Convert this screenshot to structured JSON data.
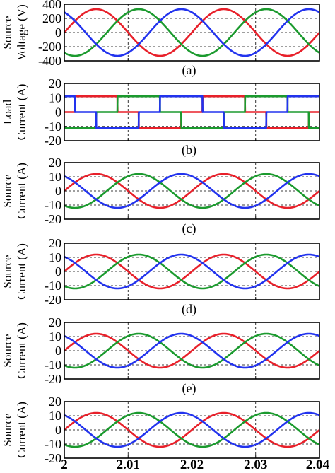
{
  "chart_data": [
    {
      "type": "line",
      "panel_label": "(a)",
      "ylabel": [
        "Source",
        "Voltage (V)"
      ],
      "ylim": [
        -400,
        400
      ],
      "yticks": [
        400,
        200,
        0,
        -200,
        -400
      ],
      "xlim": [
        2.0,
        2.04
      ],
      "grid": "dashed",
      "frequency_hz": 50,
      "series": [
        {
          "color": "#e8202a",
          "waveform": "sine",
          "amplitude": 330,
          "phase_deg": 0
        },
        {
          "color": "#1b9a2e",
          "waveform": "sine",
          "amplitude": 330,
          "phase_deg": -120
        },
        {
          "color": "#2233ee",
          "waveform": "sine",
          "amplitude": 330,
          "phase_deg": 120
        }
      ]
    },
    {
      "type": "line",
      "panel_label": "(b)",
      "ylabel": [
        "Load",
        "Current (A)"
      ],
      "ylim": [
        -20,
        20
      ],
      "yticks": [
        20,
        10,
        0,
        -10,
        -20
      ],
      "xlim": [
        2.0,
        2.04
      ],
      "grid": "dashed",
      "frequency_hz": 50,
      "series": [
        {
          "color": "#e8202a",
          "waveform": "six-step",
          "amplitude": 11,
          "phase_deg": 0
        },
        {
          "color": "#1b9a2e",
          "waveform": "six-step",
          "amplitude": 11,
          "phase_deg": -120
        },
        {
          "color": "#2233ee",
          "waveform": "six-step",
          "amplitude": 11,
          "phase_deg": 120
        }
      ]
    },
    {
      "type": "line",
      "panel_label": "(c)",
      "ylabel": [
        "Source",
        "Current (A)"
      ],
      "ylim": [
        -20,
        20
      ],
      "yticks": [
        20,
        10,
        0,
        -10,
        -20
      ],
      "xlim": [
        2.0,
        2.04
      ],
      "grid": "dashed",
      "frequency_hz": 50,
      "series": [
        {
          "color": "#e8202a",
          "waveform": "sine",
          "amplitude": 12,
          "phase_deg": 0
        },
        {
          "color": "#1b9a2e",
          "waveform": "sine",
          "amplitude": 12,
          "phase_deg": -120
        },
        {
          "color": "#2233ee",
          "waveform": "sine",
          "amplitude": 12,
          "phase_deg": 120
        }
      ]
    },
    {
      "type": "line",
      "panel_label": "(d)",
      "ylabel": [
        "Source",
        "Current (A)"
      ],
      "ylim": [
        -20,
        20
      ],
      "yticks": [
        20,
        10,
        0,
        -10,
        -20
      ],
      "xlim": [
        2.0,
        2.04
      ],
      "grid": "dashed",
      "frequency_hz": 50,
      "series": [
        {
          "color": "#e8202a",
          "waveform": "sine",
          "amplitude": 12,
          "phase_deg": 0
        },
        {
          "color": "#1b9a2e",
          "waveform": "sine",
          "amplitude": 12,
          "phase_deg": -120
        },
        {
          "color": "#2233ee",
          "waveform": "sine",
          "amplitude": 12,
          "phase_deg": 120
        }
      ]
    },
    {
      "type": "line",
      "panel_label": "(e)",
      "ylabel": [
        "Source",
        "Current (A)"
      ],
      "ylim": [
        -20,
        20
      ],
      "yticks": [
        20,
        10,
        0,
        -10,
        -20
      ],
      "xlim": [
        2.0,
        2.04
      ],
      "grid": "dashed",
      "frequency_hz": 50,
      "series": [
        {
          "color": "#e8202a",
          "waveform": "sine",
          "amplitude": 12,
          "phase_deg": 0
        },
        {
          "color": "#1b9a2e",
          "waveform": "sine",
          "amplitude": 12,
          "phase_deg": -120
        },
        {
          "color": "#2233ee",
          "waveform": "sine",
          "amplitude": 12,
          "phase_deg": 120
        }
      ]
    },
    {
      "type": "line",
      "panel_label": "",
      "ylabel": [
        "Source",
        "Current (A)"
      ],
      "ylim": [
        -20,
        20
      ],
      "yticks": [
        20,
        10,
        0,
        -10,
        -20
      ],
      "xlim": [
        2.0,
        2.04
      ],
      "xticks": [
        "2",
        "2.01",
        "2.02",
        "2.03",
        "2.04"
      ],
      "grid": "dashed",
      "frequency_hz": 50,
      "series": [
        {
          "color": "#e8202a",
          "waveform": "sine",
          "amplitude": 12,
          "phase_deg": 0
        },
        {
          "color": "#1b9a2e",
          "waveform": "sine",
          "amplitude": 12,
          "phase_deg": -120
        },
        {
          "color": "#2233ee",
          "waveform": "sine",
          "amplitude": 12,
          "phase_deg": 120
        }
      ]
    }
  ]
}
